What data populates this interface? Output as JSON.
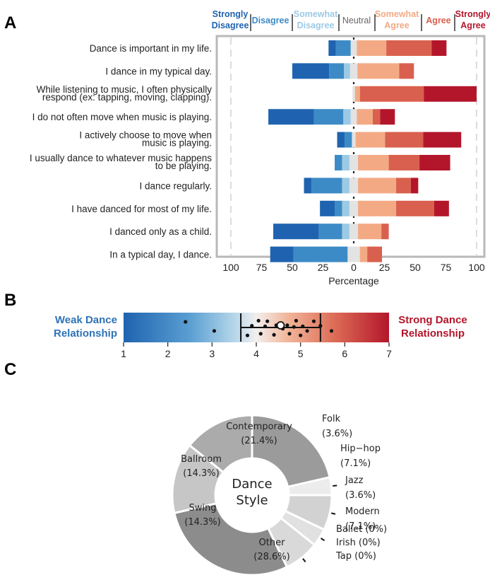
{
  "panels": {
    "a": "A",
    "b": "B",
    "c": "C"
  },
  "chart_data": [
    {
      "type": "bar",
      "orientation": "horizontal-diverging",
      "legend": [
        {
          "label": "Strongly Disagree",
          "lines": [
            "Strongly",
            "Disagree"
          ],
          "color": "#1f63b0"
        },
        {
          "label": "Disagree",
          "lines": [
            "Disagree"
          ],
          "color": "#3d8bc6"
        },
        {
          "label": "Somewhat Disagree",
          "lines": [
            "Somewhat",
            "Disagree"
          ],
          "color": "#9ccae5"
        },
        {
          "label": "Neutral",
          "lines": [
            "Neutral"
          ],
          "color": "#e3e3e3"
        },
        {
          "label": "Somewhat Agree",
          "lines": [
            "Somewhat",
            "Agree"
          ],
          "color": "#f3aa84"
        },
        {
          "label": "Agree",
          "lines": [
            "Agree"
          ],
          "color": "#d9604e"
        },
        {
          "label": "Strongly Agree",
          "lines": [
            "Strongly",
            "Agree"
          ],
          "color": "#b3162b"
        }
      ],
      "items": [
        {
          "lines": [
            "Dance is important in my life."
          ],
          "values": [
            6,
            12,
            0,
            5,
            24,
            37,
            12
          ]
        },
        {
          "lines": [
            "I dance in my typical day."
          ],
          "values": [
            30,
            12,
            5,
            6,
            34,
            12,
            0
          ]
        },
        {
          "lines": [
            "While listening to music, I often physically",
            "respond (ex: tapping, moving, clapping)."
          ],
          "values": [
            0,
            0,
            0,
            2,
            4,
            52,
            43
          ]
        },
        {
          "lines": [
            "I do not often move when music is playing."
          ],
          "values": [
            37,
            24,
            6,
            5,
            13,
            6,
            12
          ]
        },
        {
          "lines": [
            "I actively choose to move when",
            "music is playing."
          ],
          "values": [
            6,
            6,
            0,
            3,
            24,
            31,
            31
          ]
        },
        {
          "lines": [
            "I usually dance to whatever music happens",
            "to be playing."
          ],
          "values": [
            0,
            6,
            6,
            7,
            25,
            25,
            25
          ]
        },
        {
          "lines": [
            "I dance regularly."
          ],
          "values": [
            6,
            25,
            6,
            7,
            31,
            12,
            6
          ]
        },
        {
          "lines": [
            "I have danced for most of my life."
          ],
          "values": [
            12,
            6,
            6,
            7,
            31,
            31,
            12
          ]
        },
        {
          "lines": [
            "I danced only as a child."
          ],
          "values": [
            37,
            19,
            6,
            7,
            19,
            6,
            0
          ]
        },
        {
          "lines": [
            "In a typical day, I dance."
          ],
          "values": [
            19,
            44,
            0,
            10,
            6,
            12,
            0
          ]
        }
      ],
      "xaxis": {
        "label": "Percentage",
        "ticks": [
          "100",
          "75",
          "50",
          "25",
          "0",
          "25",
          "50",
          "75",
          "100"
        ],
        "range": [
          -100,
          100
        ]
      }
    },
    {
      "type": "scatter",
      "xlim": [
        1,
        7
      ],
      "ticks": [
        "1",
        "2",
        "3",
        "4",
        "5",
        "6",
        "7"
      ],
      "left_label": [
        "Weak Dance",
        "Relationship"
      ],
      "right_label": [
        "Strong Dance",
        "Relationship"
      ],
      "mean": 4.55,
      "error_bar": [
        3.65,
        5.45
      ],
      "points": [
        {
          "x": 2.4,
          "y": 1
        },
        {
          "x": 3.05,
          "y": -0.6
        },
        {
          "x": 3.8,
          "y": -1.4
        },
        {
          "x": 3.9,
          "y": 0.3
        },
        {
          "x": 4.05,
          "y": 1.2
        },
        {
          "x": 4.1,
          "y": -1.1
        },
        {
          "x": 4.2,
          "y": 0.2
        },
        {
          "x": 4.25,
          "y": 1.1
        },
        {
          "x": 4.4,
          "y": -1.3
        },
        {
          "x": 4.45,
          "y": 0.4
        },
        {
          "x": 4.6,
          "y": -0.2
        },
        {
          "x": 4.7,
          "y": 0.4
        },
        {
          "x": 4.75,
          "y": -1.1
        },
        {
          "x": 4.85,
          "y": 0.1
        },
        {
          "x": 4.9,
          "y": 1.2
        },
        {
          "x": 5.0,
          "y": -1.4
        },
        {
          "x": 5.05,
          "y": 0.2
        },
        {
          "x": 5.15,
          "y": -0.6
        },
        {
          "x": 5.3,
          "y": 1.1
        },
        {
          "x": 5.45,
          "y": 0.3
        },
        {
          "x": 5.7,
          "y": -0.6
        }
      ]
    },
    {
      "type": "pie",
      "donut": true,
      "center_label": [
        "Dance",
        "Style"
      ],
      "slices": [
        {
          "label": "Contemporary",
          "pct_label": "(21.4%)",
          "value": 21.4,
          "color": "#9b9b9b"
        },
        {
          "label": "Folk",
          "pct_label": "(3.6%)",
          "value": 3.6,
          "color": "#ececec"
        },
        {
          "label": "Hip−hop",
          "pct_label": "(7.1%)",
          "value": 7.1,
          "color": "#d2d2d2"
        },
        {
          "label": "Jazz",
          "pct_label": "(3.6%)",
          "value": 3.6,
          "color": "#e1e1e1"
        },
        {
          "label": "Modern",
          "pct_label": "(7.1%)",
          "value": 7.1,
          "color": "#d9d9d9"
        },
        {
          "label": "Other",
          "pct_label": "(28.6%)",
          "value": 28.6,
          "color": "#8c8c8c"
        },
        {
          "label": "Swing",
          "pct_label": "(14.3%)",
          "value": 14.3,
          "color": "#c6c6c6"
        },
        {
          "label": "Ballroom",
          "pct_label": "(14.3%)",
          "value": 14.3,
          "color": "#ababab"
        }
      ],
      "zero_categories": [
        "Ballet (0%)",
        "Irish (0%)",
        "Tap (0%)"
      ]
    }
  ]
}
